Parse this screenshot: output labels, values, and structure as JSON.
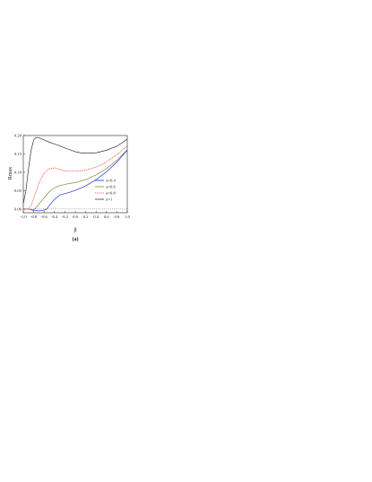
{
  "chart_data": {
    "type": "line",
    "title": "",
    "xlabel": "β",
    "ylabel": "Rmax",
    "caption": "(a)",
    "xlim": [
      -1.0,
      1.0
    ],
    "ylim": [
      -0.01,
      0.2
    ],
    "x_ticks": [
      "-1.0",
      "-0.8",
      "-0.6",
      "-0.4",
      "-0.2",
      "0.0",
      "0.2",
      "0.4",
      "0.6",
      "0.8",
      "1.0"
    ],
    "y_ticks": [
      "0.00",
      "0.05",
      "0.10",
      "0.15",
      "0.20"
    ],
    "legend_position": "bottom-right",
    "reference_line": {
      "y": 0.0,
      "style": "dotted"
    },
    "series": [
      {
        "name": "α=0.4",
        "color": "#1f2fd6",
        "style": "solid",
        "x": [
          -1.0,
          -0.9,
          -0.8,
          -0.7,
          -0.65,
          -0.6,
          -0.55,
          -0.5,
          -0.4,
          -0.3,
          -0.2,
          -0.1,
          0.0,
          0.2,
          0.4,
          0.6,
          0.8,
          1.0
        ],
        "y": [
          0.0,
          0.0,
          -0.004,
          -0.005,
          -0.004,
          -0.003,
          0.0,
          0.01,
          0.026,
          0.038,
          0.042,
          0.046,
          0.051,
          0.063,
          0.08,
          0.101,
          0.128,
          0.16
        ]
      },
      {
        "name": "α=0.6",
        "color": "#7a8a3a",
        "style": "solid",
        "x": [
          -1.0,
          -0.9,
          -0.8,
          -0.75,
          -0.7,
          -0.6,
          -0.5,
          -0.4,
          -0.3,
          -0.2,
          -0.1,
          0.0,
          0.2,
          0.4,
          0.6,
          0.8,
          1.0
        ],
        "y": [
          0.0,
          0.0,
          -0.002,
          0.004,
          0.014,
          0.03,
          0.047,
          0.058,
          0.064,
          0.067,
          0.07,
          0.072,
          0.08,
          0.093,
          0.11,
          0.133,
          0.162
        ]
      },
      {
        "name": "α=0.8",
        "color": "#ff2a2a",
        "style": "dotted",
        "x": [
          -1.0,
          -0.9,
          -0.85,
          -0.8,
          -0.7,
          -0.6,
          -0.5,
          -0.4,
          -0.3,
          -0.2,
          -0.1,
          0.0,
          0.1,
          0.2,
          0.4,
          0.6,
          0.8,
          1.0
        ],
        "y": [
          0.0,
          0.0,
          0.01,
          0.03,
          0.07,
          0.098,
          0.11,
          0.112,
          0.108,
          0.104,
          0.103,
          0.103,
          0.104,
          0.106,
          0.114,
          0.128,
          0.148,
          0.172
        ]
      },
      {
        "name": "α=1",
        "color": "#333333",
        "style": "solid",
        "x": [
          -1.0,
          -0.95,
          -0.9,
          -0.85,
          -0.8,
          -0.75,
          -0.7,
          -0.6,
          -0.5,
          -0.4,
          -0.3,
          -0.2,
          -0.1,
          0.0,
          0.1,
          0.2,
          0.3,
          0.4,
          0.6,
          0.8,
          1.0
        ],
        "y": [
          0.015,
          0.05,
          0.11,
          0.16,
          0.188,
          0.195,
          0.194,
          0.188,
          0.182,
          0.177,
          0.172,
          0.166,
          0.161,
          0.156,
          0.153,
          0.152,
          0.152,
          0.153,
          0.16,
          0.171,
          0.19
        ]
      }
    ]
  }
}
